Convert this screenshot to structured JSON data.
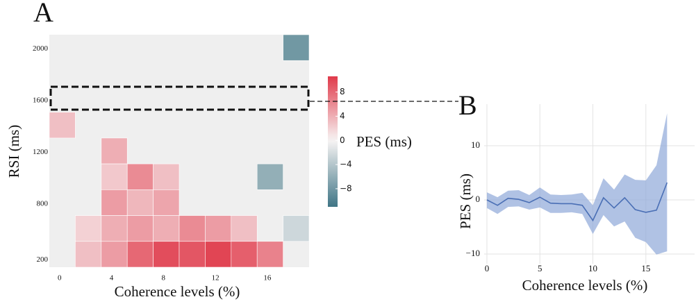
{
  "chart_data": [
    {
      "type": "heatmap",
      "title": "A",
      "x_categories": [
        "0",
        null,
        "4",
        null,
        "8",
        null,
        "12",
        null,
        "16",
        null
      ],
      "y_categories": [
        "2000",
        null,
        "1600",
        null,
        "1200",
        null,
        "800",
        null,
        "200"
      ],
      "values": [
        [
          null,
          null,
          null,
          null,
          null,
          null,
          null,
          null,
          null,
          -8
        ],
        [
          null,
          null,
          null,
          null,
          null,
          null,
          null,
          null,
          null,
          null
        ],
        [
          null,
          null,
          null,
          null,
          null,
          null,
          null,
          null,
          null,
          null
        ],
        [
          3,
          null,
          null,
          null,
          null,
          null,
          null,
          null,
          null,
          null
        ],
        [
          null,
          null,
          4,
          null,
          null,
          null,
          null,
          null,
          null,
          null
        ],
        [
          null,
          null,
          2.5,
          6,
          3,
          null,
          null,
          null,
          -6,
          null
        ],
        [
          null,
          null,
          5,
          3.5,
          4.5,
          null,
          null,
          null,
          null,
          null
        ],
        [
          null,
          2,
          4,
          5,
          4,
          6,
          5,
          3,
          null,
          -2.5
        ],
        [
          null,
          3,
          5,
          8,
          9.5,
          9,
          10,
          8.5,
          6.5,
          null
        ]
      ],
      "zlim": [
        -11,
        10.6
      ],
      "zticks": [
        {
          "value": -8,
          "label": "−8"
        },
        {
          "value": -4,
          "label": "−4"
        },
        0,
        4,
        8
      ],
      "colors": {
        "negative": "#3f7585",
        "zero": "#f7f4f4",
        "positive": "#e03a4a",
        "empty": "#efefef"
      },
      "colorbar_label": "PES (ms)",
      "x_label": "Coherence levels (%)",
      "y_label": "RSI (ms)"
    },
    {
      "type": "line",
      "title": "B",
      "x": [
        0,
        1,
        2,
        3,
        4,
        5,
        6,
        7,
        8,
        9,
        10,
        11,
        12,
        13,
        14,
        15,
        16,
        17
      ],
      "values": [
        0,
        -1,
        0.3,
        0.1,
        -0.5,
        0.5,
        -0.6,
        -0.7,
        -0.7,
        -1,
        -3.8,
        0.4,
        -1.5,
        0.4,
        -1.8,
        -2.3,
        -1.9,
        3.2
      ],
      "upper": [
        1.4,
        0.5,
        1.7,
        1.8,
        0.9,
        2.3,
        1,
        0.9,
        1,
        1.3,
        -1,
        4,
        1.9,
        4.7,
        3.7,
        3.6,
        6.4,
        16
      ],
      "lower": [
        -1.5,
        -2.6,
        -1.3,
        -1.2,
        -1.8,
        -1.4,
        -2.4,
        -2.4,
        -2.3,
        -2.6,
        -6.3,
        -2.8,
        -4.9,
        -4,
        -7,
        -7.8,
        -10.1,
        -9.5
      ],
      "color": "#4a6fb5",
      "band_color": "#8fa8d8",
      "xlim": [
        -0.26,
        19.6
      ],
      "ylim": [
        -11.8,
        17.7
      ],
      "xticks": [
        0,
        5,
        10,
        15
      ],
      "yticks": [
        {
          "value": -10,
          "label": "−10"
        },
        0,
        10
      ],
      "grid": true,
      "x_label": "Coherence levels (%)",
      "y_label": "PES (ms)"
    }
  ]
}
